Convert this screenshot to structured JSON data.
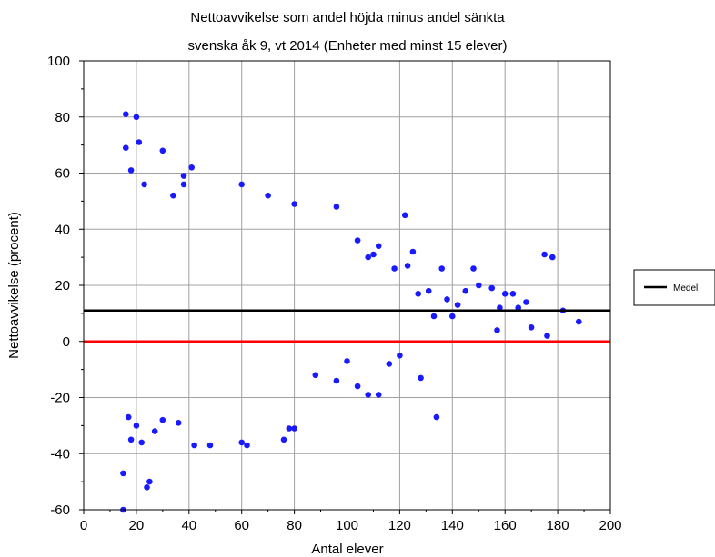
{
  "chart_data": {
    "type": "scatter",
    "title": "Nettoavvikelse som andel höjda minus andel sänkta",
    "subtitle": "svenska åk 9, vt 2014 (Enheter med minst 15 elever)",
    "xlabel": "Antal elever",
    "ylabel": "Nettoavvikelse (procent)",
    "xlim": [
      0,
      200
    ],
    "ylim": [
      -60,
      100
    ],
    "x_ticks": [
      "0",
      "20",
      "40",
      "60",
      "80",
      "100",
      "120",
      "140",
      "160",
      "180",
      "200"
    ],
    "y_ticks": [
      "-60",
      "-40",
      "-20",
      "0",
      "20",
      "40",
      "60",
      "80",
      "100"
    ],
    "grid": true,
    "legend": {
      "placement": "right",
      "entries": [
        {
          "label": "Medel",
          "color": "#000000"
        }
      ]
    },
    "reference_lines": [
      {
        "label": "Medel",
        "y": 11,
        "color": "#000000"
      },
      {
        "y": 0,
        "color": "#ff0000"
      }
    ],
    "series": [
      {
        "color": "#1a1aff",
        "points": [
          [
            15,
            -60
          ],
          [
            15,
            -47
          ],
          [
            16,
            81
          ],
          [
            16,
            69
          ],
          [
            18,
            61
          ],
          [
            20,
            80
          ],
          [
            21,
            71
          ],
          [
            23,
            56
          ],
          [
            30,
            68
          ],
          [
            34,
            52
          ],
          [
            38,
            59
          ],
          [
            38,
            56
          ],
          [
            41,
            62
          ],
          [
            60,
            56
          ],
          [
            70,
            52
          ],
          [
            80,
            49
          ],
          [
            96,
            48
          ],
          [
            122,
            45
          ],
          [
            17,
            -27
          ],
          [
            18,
            -35
          ],
          [
            20,
            -30
          ],
          [
            22,
            -36
          ],
          [
            25,
            -50
          ],
          [
            24,
            -52
          ],
          [
            27,
            -32
          ],
          [
            30,
            -28
          ],
          [
            36,
            -29
          ],
          [
            42,
            -37
          ],
          [
            48,
            -37
          ],
          [
            60,
            -36
          ],
          [
            62,
            -37
          ],
          [
            76,
            -35
          ],
          [
            78,
            -31
          ],
          [
            80,
            -31
          ],
          [
            134,
            -27
          ],
          [
            108,
            -19
          ],
          [
            112,
            -19
          ],
          [
            104,
            -16
          ],
          [
            96,
            -14
          ],
          [
            88,
            -12
          ],
          [
            128,
            -13
          ],
          [
            120,
            -5
          ],
          [
            116,
            -8
          ],
          [
            100,
            -7
          ],
          [
            182,
            11
          ],
          [
            188,
            7
          ],
          [
            176,
            2
          ],
          [
            175,
            31
          ],
          [
            178,
            30
          ],
          [
            165,
            12
          ],
          [
            168,
            14
          ],
          [
            160,
            17
          ],
          [
            158,
            12
          ],
          [
            157,
            4
          ],
          [
            155,
            19
          ],
          [
            150,
            20
          ],
          [
            148,
            26
          ],
          [
            145,
            18
          ],
          [
            142,
            13
          ],
          [
            140,
            9
          ],
          [
            136,
            26
          ],
          [
            131,
            18
          ],
          [
            125,
            32
          ],
          [
            123,
            27
          ],
          [
            118,
            26
          ],
          [
            112,
            34
          ],
          [
            108,
            30
          ],
          [
            104,
            36
          ],
          [
            110,
            31
          ],
          [
            170,
            5
          ],
          [
            163,
            17
          ],
          [
            138,
            15
          ],
          [
            133,
            9
          ],
          [
            127,
            17
          ]
        ]
      }
    ]
  }
}
